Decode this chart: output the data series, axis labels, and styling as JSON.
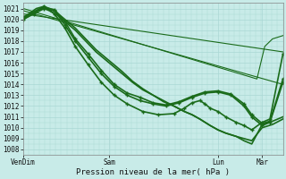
{
  "bg_color": "#c8ebe8",
  "grid_color": "#aad8d4",
  "line_color": "#1a6b1a",
  "plot_bg": "#c8ebe8",
  "ylabel_text": "Pression niveau de la mer( hPa )",
  "xtick_labels": [
    "VenDim",
    "Sam",
    "Lun",
    "Mar"
  ],
  "xtick_positions": [
    0.0,
    0.33,
    0.75,
    0.92
  ],
  "ylim": [
    1007.5,
    1021.5
  ],
  "yticks": [
    1008,
    1009,
    1010,
    1011,
    1012,
    1013,
    1014,
    1015,
    1016,
    1017,
    1018,
    1019,
    1020,
    1021
  ],
  "lines": [
    {
      "x": [
        0.0,
        0.02,
        0.05,
        0.08,
        0.1,
        0.13,
        0.16,
        0.2,
        0.24,
        0.28,
        0.33,
        0.38,
        0.42,
        0.46,
        0.5,
        0.54,
        0.58,
        0.62,
        0.65,
        0.68,
        0.7,
        0.72,
        0.75,
        0.78,
        0.82,
        0.85,
        0.88,
        0.92,
        0.96,
        1.0
      ],
      "y": [
        1020.0,
        1020.3,
        1020.8,
        1021.0,
        1020.8,
        1020.4,
        1019.8,
        1019.0,
        1018.0,
        1017.0,
        1016.0,
        1015.0,
        1014.2,
        1013.5,
        1013.0,
        1012.5,
        1012.0,
        1011.5,
        1011.2,
        1010.8,
        1010.5,
        1010.2,
        1009.8,
        1009.5,
        1009.2,
        1008.8,
        1008.5,
        1010.3,
        1010.6,
        1011.0
      ],
      "lw": 1.2,
      "marker": null
    },
    {
      "x": [
        0.0,
        0.02,
        0.05,
        0.08,
        0.1,
        0.13,
        0.16,
        0.2,
        0.24,
        0.28,
        0.33,
        0.38,
        0.42,
        0.46,
        0.5,
        0.54,
        0.58,
        0.62,
        0.65,
        0.68,
        0.7,
        0.72,
        0.75,
        0.78,
        0.82,
        0.85,
        0.88,
        0.92,
        0.96,
        1.0
      ],
      "y": [
        1020.2,
        1020.5,
        1021.0,
        1021.2,
        1021.0,
        1020.6,
        1020.0,
        1019.2,
        1018.2,
        1017.2,
        1016.2,
        1015.2,
        1014.3,
        1013.6,
        1013.0,
        1012.4,
        1012.0,
        1011.5,
        1011.2,
        1010.8,
        1010.5,
        1010.2,
        1009.8,
        1009.5,
        1009.2,
        1009.0,
        1008.8,
        1010.0,
        1010.3,
        1010.8
      ],
      "lw": 1.2,
      "marker": null
    },
    {
      "x": [
        0.0,
        0.04,
        0.08,
        0.12,
        0.16,
        0.2,
        0.25,
        0.3,
        0.35,
        0.4,
        0.45,
        0.5,
        0.55,
        0.6,
        0.65,
        0.7,
        0.75,
        0.8,
        0.85,
        0.88,
        0.92,
        0.95,
        1.0
      ],
      "y": [
        1020.0,
        1020.5,
        1021.0,
        1020.8,
        1019.5,
        1018.0,
        1016.5,
        1015.0,
        1013.8,
        1013.0,
        1012.5,
        1012.2,
        1012.0,
        1012.3,
        1012.8,
        1013.2,
        1013.3,
        1013.0,
        1012.0,
        1011.0,
        1010.2,
        1010.5,
        1014.2
      ],
      "lw": 1.2,
      "marker": "+"
    },
    {
      "x": [
        0.0,
        0.04,
        0.08,
        0.12,
        0.16,
        0.2,
        0.25,
        0.3,
        0.35,
        0.4,
        0.45,
        0.5,
        0.55,
        0.6,
        0.65,
        0.7,
        0.75,
        0.8,
        0.85,
        0.88,
        0.92,
        0.95,
        1.0
      ],
      "y": [
        1020.1,
        1020.6,
        1021.1,
        1020.9,
        1019.8,
        1018.2,
        1016.8,
        1015.3,
        1014.0,
        1013.2,
        1012.8,
        1012.3,
        1012.1,
        1012.4,
        1012.9,
        1013.3,
        1013.4,
        1013.1,
        1012.2,
        1011.2,
        1010.4,
        1010.6,
        1014.5
      ],
      "lw": 1.2,
      "marker": "+"
    },
    {
      "x": [
        0.0,
        0.04,
        0.08,
        0.12,
        0.16,
        0.2,
        0.25,
        0.3,
        0.35,
        0.4,
        0.46,
        0.52,
        0.58,
        0.62,
        0.65,
        0.68,
        0.7,
        0.72,
        0.75,
        0.78,
        0.82,
        0.85,
        0.88,
        0.92,
        0.95,
        1.0
      ],
      "y": [
        1020.2,
        1020.7,
        1021.2,
        1020.5,
        1019.2,
        1017.5,
        1015.8,
        1014.2,
        1013.0,
        1012.2,
        1011.5,
        1011.2,
        1011.3,
        1011.8,
        1012.3,
        1012.5,
        1012.2,
        1011.8,
        1011.5,
        1011.0,
        1010.5,
        1010.2,
        1009.8,
        1010.5,
        1010.8,
        1016.8
      ],
      "lw": 1.2,
      "marker": "+"
    },
    {
      "x": [
        0.0,
        1.0
      ],
      "y": [
        1020.5,
        1017.0
      ],
      "lw": 0.8,
      "marker": null
    },
    {
      "x": [
        0.0,
        1.0
      ],
      "y": [
        1020.8,
        1014.0
      ],
      "lw": 0.8,
      "marker": null
    },
    {
      "x": [
        0.0,
        0.9,
        0.93,
        0.96,
        1.0
      ],
      "y": [
        1021.0,
        1014.5,
        1017.5,
        1018.2,
        1018.5
      ],
      "lw": 0.8,
      "marker": null
    }
  ]
}
